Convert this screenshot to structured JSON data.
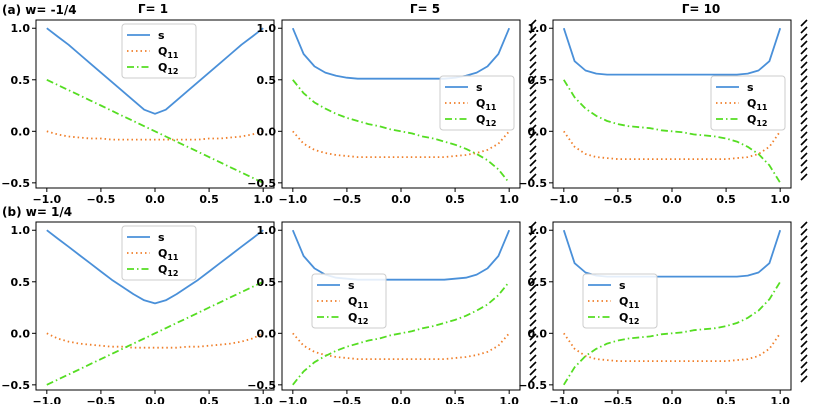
{
  "figure": {
    "row_labels": [
      "(a) w= -1/4",
      "(b) w= 1/4"
    ],
    "column_titles": [
      "Γ= 1",
      "Γ= 5",
      "Γ= 10"
    ]
  },
  "chart_data": {
    "type": "line",
    "layout": "2 rows x 3 columns of line plots",
    "x_ticks": [
      -1.0,
      -0.5,
      0.0,
      0.5,
      1.0
    ],
    "x_tick_labels": [
      "−1.0",
      "−0.5",
      "0.0",
      "0.5",
      "1.0"
    ],
    "y_ticks": [
      -0.5,
      0.0,
      0.5,
      1.0
    ],
    "y_tick_labels": [
      "−0.5",
      "0.0",
      "0.5",
      "1.0"
    ],
    "xlim": [
      -1.1,
      1.1
    ],
    "ylim": [
      -0.55,
      1.08
    ],
    "series_styles": [
      {
        "key": "s",
        "label": "s",
        "color": "#4a90d9",
        "dash": "solid"
      },
      {
        "key": "q11",
        "label": "Q",
        "sub": "11",
        "color": "#f07f2a",
        "dash": "dotted"
      },
      {
        "key": "q12",
        "label": "Q",
        "sub": "12",
        "color": "#55dd22",
        "dash": "dashdot"
      }
    ],
    "x": [
      -1.0,
      -0.9,
      -0.8,
      -0.7,
      -0.6,
      -0.5,
      -0.4,
      -0.3,
      -0.2,
      -0.1,
      0.0,
      0.1,
      0.2,
      0.3,
      0.4,
      0.5,
      0.6,
      0.7,
      0.8,
      0.9,
      1.0
    ],
    "panels": [
      {
        "id": "a1",
        "row": 0,
        "col": 0,
        "gamma": "1",
        "w": "-1/4",
        "legend": "top-center",
        "s": [
          1.0,
          0.92,
          0.84,
          0.75,
          0.66,
          0.57,
          0.48,
          0.39,
          0.3,
          0.21,
          0.17,
          0.21,
          0.3,
          0.39,
          0.48,
          0.57,
          0.66,
          0.75,
          0.84,
          0.92,
          1.0
        ],
        "q11": [
          0.0,
          -0.03,
          -0.05,
          -0.06,
          -0.07,
          -0.07,
          -0.08,
          -0.08,
          -0.08,
          -0.08,
          -0.08,
          -0.08,
          -0.08,
          -0.08,
          -0.08,
          -0.07,
          -0.07,
          -0.06,
          -0.05,
          -0.03,
          0.0
        ],
        "q12": [
          0.5,
          0.45,
          0.4,
          0.35,
          0.3,
          0.25,
          0.2,
          0.15,
          0.1,
          0.05,
          0.0,
          -0.05,
          -0.1,
          -0.15,
          -0.2,
          -0.25,
          -0.3,
          -0.35,
          -0.4,
          -0.45,
          -0.5
        ]
      },
      {
        "id": "a2",
        "row": 0,
        "col": 1,
        "gamma": "5",
        "w": "-1/4",
        "legend": "right",
        "s": [
          1.0,
          0.75,
          0.63,
          0.57,
          0.54,
          0.52,
          0.51,
          0.51,
          0.51,
          0.51,
          0.51,
          0.51,
          0.51,
          0.51,
          0.51,
          0.52,
          0.54,
          0.57,
          0.63,
          0.75,
          1.0
        ],
        "q11": [
          0.0,
          -0.12,
          -0.18,
          -0.21,
          -0.23,
          -0.24,
          -0.25,
          -0.25,
          -0.25,
          -0.25,
          -0.25,
          -0.25,
          -0.25,
          -0.25,
          -0.25,
          -0.24,
          -0.23,
          -0.21,
          -0.18,
          -0.12,
          0.0
        ],
        "q12": [
          0.5,
          0.37,
          0.28,
          0.22,
          0.17,
          0.13,
          0.1,
          0.07,
          0.05,
          0.02,
          0.0,
          -0.02,
          -0.05,
          -0.07,
          -0.1,
          -0.13,
          -0.17,
          -0.22,
          -0.28,
          -0.37,
          -0.5
        ]
      },
      {
        "id": "a3",
        "row": 0,
        "col": 2,
        "gamma": "10",
        "w": "-1/4",
        "legend": "right",
        "s": [
          1.0,
          0.68,
          0.59,
          0.56,
          0.55,
          0.55,
          0.55,
          0.55,
          0.55,
          0.55,
          0.55,
          0.55,
          0.55,
          0.55,
          0.55,
          0.55,
          0.55,
          0.56,
          0.59,
          0.68,
          1.0
        ],
        "q11": [
          0.0,
          -0.15,
          -0.22,
          -0.25,
          -0.26,
          -0.27,
          -0.27,
          -0.27,
          -0.27,
          -0.27,
          -0.27,
          -0.27,
          -0.27,
          -0.27,
          -0.27,
          -0.27,
          -0.26,
          -0.25,
          -0.22,
          -0.15,
          0.0
        ],
        "q12": [
          0.5,
          0.33,
          0.22,
          0.15,
          0.1,
          0.07,
          0.05,
          0.04,
          0.03,
          0.01,
          0.0,
          -0.01,
          -0.03,
          -0.04,
          -0.05,
          -0.07,
          -0.1,
          -0.15,
          -0.22,
          -0.33,
          -0.5
        ]
      },
      {
        "id": "b1",
        "row": 1,
        "col": 0,
        "gamma": "1",
        "w": "1/4",
        "legend": "top-center",
        "s": [
          1.0,
          0.92,
          0.84,
          0.76,
          0.68,
          0.6,
          0.52,
          0.45,
          0.38,
          0.32,
          0.29,
          0.32,
          0.38,
          0.45,
          0.52,
          0.6,
          0.68,
          0.76,
          0.84,
          0.92,
          1.0
        ],
        "q11": [
          0.0,
          -0.05,
          -0.08,
          -0.1,
          -0.11,
          -0.12,
          -0.13,
          -0.13,
          -0.14,
          -0.14,
          -0.14,
          -0.14,
          -0.14,
          -0.13,
          -0.13,
          -0.12,
          -0.11,
          -0.1,
          -0.08,
          -0.05,
          0.0
        ],
        "q12": [
          -0.5,
          -0.45,
          -0.4,
          -0.35,
          -0.3,
          -0.25,
          -0.2,
          -0.15,
          -0.1,
          -0.05,
          0.0,
          0.05,
          0.1,
          0.15,
          0.2,
          0.25,
          0.3,
          0.35,
          0.4,
          0.45,
          0.5
        ]
      },
      {
        "id": "b2",
        "row": 1,
        "col": 1,
        "gamma": "5",
        "w": "1/4",
        "legend": "left",
        "s": [
          1.0,
          0.75,
          0.63,
          0.57,
          0.54,
          0.53,
          0.52,
          0.52,
          0.52,
          0.52,
          0.52,
          0.52,
          0.52,
          0.52,
          0.52,
          0.53,
          0.54,
          0.57,
          0.63,
          0.75,
          1.0
        ],
        "q11": [
          0.0,
          -0.12,
          -0.18,
          -0.21,
          -0.23,
          -0.24,
          -0.25,
          -0.25,
          -0.25,
          -0.25,
          -0.25,
          -0.25,
          -0.25,
          -0.25,
          -0.25,
          -0.24,
          -0.23,
          -0.21,
          -0.18,
          -0.12,
          0.0
        ],
        "q12": [
          -0.5,
          -0.37,
          -0.28,
          -0.22,
          -0.17,
          -0.13,
          -0.1,
          -0.07,
          -0.05,
          -0.02,
          0.0,
          0.02,
          0.05,
          0.07,
          0.1,
          0.13,
          0.17,
          0.22,
          0.28,
          0.37,
          0.5
        ]
      },
      {
        "id": "b3",
        "row": 1,
        "col": 2,
        "gamma": "10",
        "w": "1/4",
        "legend": "left",
        "s": [
          1.0,
          0.68,
          0.59,
          0.56,
          0.55,
          0.55,
          0.55,
          0.55,
          0.55,
          0.55,
          0.55,
          0.55,
          0.55,
          0.55,
          0.55,
          0.55,
          0.55,
          0.56,
          0.59,
          0.68,
          1.0
        ],
        "q11": [
          0.0,
          -0.15,
          -0.22,
          -0.25,
          -0.26,
          -0.27,
          -0.27,
          -0.27,
          -0.27,
          -0.27,
          -0.27,
          -0.27,
          -0.27,
          -0.27,
          -0.27,
          -0.27,
          -0.26,
          -0.25,
          -0.22,
          -0.15,
          0.0
        ],
        "q12": [
          -0.5,
          -0.33,
          -0.22,
          -0.15,
          -0.1,
          -0.07,
          -0.05,
          -0.04,
          -0.03,
          -0.01,
          0.0,
          0.01,
          0.03,
          0.04,
          0.05,
          0.07,
          0.1,
          0.15,
          0.22,
          0.33,
          0.5
        ]
      }
    ]
  }
}
